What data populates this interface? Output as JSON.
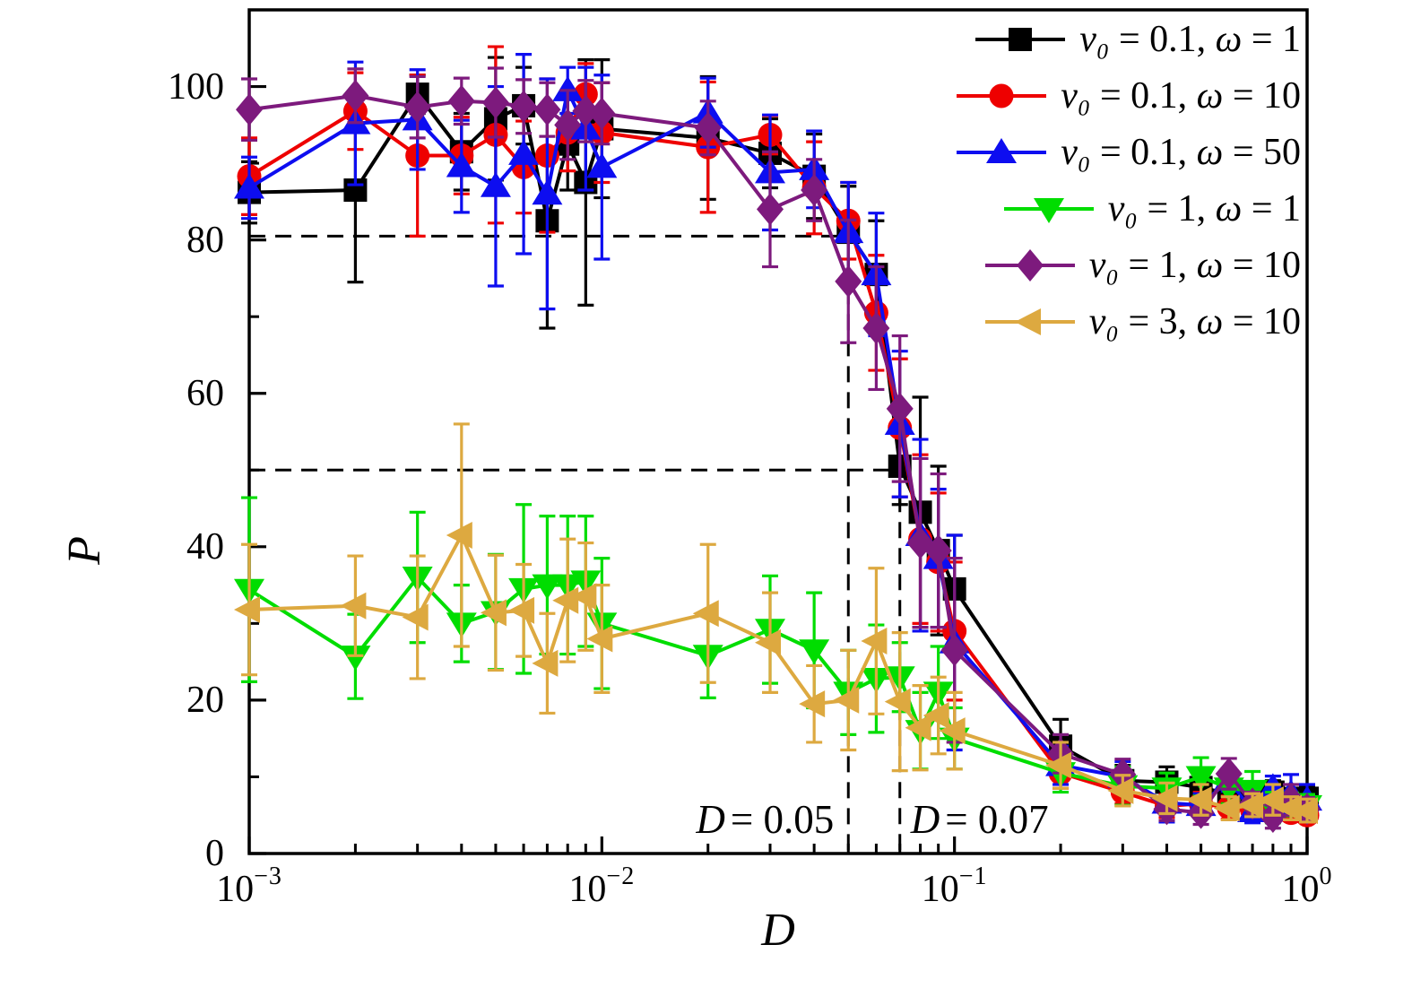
{
  "figure": {
    "background": "#ffffff"
  },
  "chart_data": {
    "type": "line",
    "title": "",
    "xlabel": "D",
    "ylabel": "P",
    "x_scale": "log",
    "xlim": [
      0.001,
      1
    ],
    "ylim": [
      0,
      110
    ],
    "grid": false,
    "legend_position": "top-right-inside",
    "x_tick_labels": [
      {
        "base": "10",
        "exp": "−3",
        "value": 0.001
      },
      {
        "base": "10",
        "exp": "−2",
        "value": 0.01
      },
      {
        "base": "10",
        "exp": "−1",
        "value": 0.1
      },
      {
        "base": "10",
        "exp": "0",
        "value": 1
      }
    ],
    "y_tick_values": [
      0,
      20,
      40,
      60,
      80,
      100
    ],
    "y_minor_ticks": [
      10,
      30,
      50,
      70,
      90
    ],
    "x": [
      0.001,
      0.002,
      0.003,
      0.004,
      0.005,
      0.006,
      0.007,
      0.008,
      0.009,
      0.01,
      0.02,
      0.03,
      0.04,
      0.05,
      0.06,
      0.07,
      0.08,
      0.09,
      0.1,
      0.2,
      0.3,
      0.4,
      0.5,
      0.6,
      0.7,
      0.8,
      0.9,
      1.0
    ],
    "series": [
      {
        "name": "v₀ = 0.1, ω = 1",
        "name_parts": [
          "v₀",
          " = 0.1, ",
          "ω",
          " = 1"
        ],
        "color": "#000000",
        "marker": "square",
        "values": [
          86.2,
          86.5,
          99.0,
          91.5,
          95.8,
          97.5,
          82.5,
          92.5,
          87.5,
          94.5,
          93.3,
          91.3,
          88.3,
          81.0,
          75.5,
          50.5,
          44.5,
          39.5,
          34.5,
          14.0,
          9.5,
          9.3,
          8.6,
          7.8,
          7.8,
          8.0,
          7.0,
          7.2
        ],
        "errors": [
          4,
          12,
          2.5,
          5,
          8,
          5,
          14,
          6,
          16,
          9,
          8,
          4.5,
          5.5,
          6,
          7,
          5,
          15,
          11,
          7,
          3.5,
          2,
          2,
          1.5,
          1.5,
          1.5,
          1.5,
          1.5,
          1.5
        ]
      },
      {
        "name": "v₀ = 0.1, ω = 10",
        "name_parts": [
          "v₀",
          " = 0.1, ",
          "ω",
          " = 10"
        ],
        "color": "#ee0000",
        "marker": "circle",
        "values": [
          88.3,
          96.8,
          91.0,
          91.0,
          93.7,
          89.5,
          91.0,
          94.0,
          99.0,
          94.0,
          92.1,
          93.7,
          86.8,
          82.5,
          70.5,
          55.5,
          41.0,
          38.0,
          29.0,
          10.5,
          8.0,
          6.2,
          6.5,
          6.0,
          5.5,
          6.2,
          5.3,
          5.0
        ],
        "errors": [
          5,
          5,
          10.5,
          5,
          11.5,
          6,
          10,
          5,
          4,
          6.5,
          8.5,
          2.5,
          6,
          5,
          7.5,
          9,
          11,
          9,
          9,
          2,
          1.5,
          1.5,
          1.5,
          1.5,
          1,
          1.5,
          1,
          1
        ]
      },
      {
        "name": "v₀ = 0.1, ω = 50",
        "name_parts": [
          "v₀",
          " = 0.1, ",
          "ω",
          " = 50"
        ],
        "color": "#0d0df0",
        "marker": "triangle-up",
        "values": [
          86.8,
          95.2,
          95.7,
          89.6,
          87.0,
          91.2,
          86.0,
          99.5,
          94.5,
          89.5,
          96.6,
          88.8,
          89.2,
          81.0,
          75.5,
          56.0,
          41.5,
          38.5,
          27.5,
          11.5,
          10.0,
          6.6,
          6.3,
          9.6,
          5.5,
          8.6,
          7.8,
          7.0
        ],
        "errors": [
          4,
          8,
          6.5,
          6,
          13,
          13,
          15,
          3,
          8,
          12,
          4.5,
          7.5,
          5,
          6.5,
          8,
          9.5,
          12.5,
          9,
          14,
          2.5,
          2,
          2.5,
          1.5,
          1.5,
          1.5,
          1.5,
          2.5,
          2
        ]
      },
      {
        "name": "v₀ = 1, ω = 1",
        "name_parts": [
          "v₀",
          " = 1, ",
          "ω",
          " = 1"
        ],
        "color": "#00dd00",
        "marker": "triangle-down",
        "values": [
          34.4,
          25.7,
          36.0,
          30.0,
          31.5,
          34.5,
          35.0,
          35.0,
          35.5,
          30.0,
          25.8,
          29.2,
          26.5,
          21.0,
          22.8,
          23.0,
          16.0,
          21.0,
          15.0,
          10.5,
          8.8,
          8.5,
          10.0,
          8.5,
          8.2,
          6.0,
          6.4,
          6.2
        ],
        "errors": [
          12,
          5.5,
          8.5,
          5,
          7.5,
          11,
          9,
          9,
          8.5,
          8.5,
          5.5,
          7,
          7.5,
          5.5,
          7,
          4.5,
          5,
          6,
          4,
          2.5,
          2.5,
          2,
          2.5,
          2,
          2.5,
          2,
          1.5,
          1.5
        ]
      },
      {
        "name": "v₀ = 1, ω = 10",
        "name_parts": [
          "v₀",
          " = 1, ",
          "ω",
          " = 10"
        ],
        "color": "#7d1a7d",
        "marker": "diamond",
        "values": [
          97.0,
          98.8,
          97.3,
          98.1,
          97.9,
          97.4,
          97.0,
          95.0,
          96.8,
          96.5,
          94.6,
          84.0,
          86.5,
          74.6,
          68.5,
          58.0,
          40.5,
          39.5,
          26.5,
          13.0,
          10.3,
          5.8,
          5.3,
          10.4,
          6.5,
          4.8,
          7.0,
          5.8
        ],
        "errors": [
          4,
          3.5,
          4,
          3,
          4.5,
          3.5,
          3.5,
          4.5,
          4,
          4,
          3.5,
          7.5,
          4,
          8,
          8,
          9.5,
          11,
          10,
          12,
          2.5,
          2,
          1.5,
          1.5,
          2,
          1.5,
          1.5,
          2,
          1.5
        ]
      },
      {
        "name": "v₀ = 3, ω = 10",
        "name_parts": [
          "v₀",
          " = 3, ",
          "ω",
          " = 10"
        ],
        "color": "#dda940",
        "marker": "triangle-left",
        "values": [
          31.8,
          32.3,
          30.8,
          41.5,
          31.4,
          31.7,
          24.8,
          33.0,
          33.5,
          28.0,
          31.3,
          27.5,
          19.5,
          20.0,
          27.7,
          19.8,
          16.4,
          18.0,
          16.0,
          11.5,
          8.2,
          7.2,
          7.0,
          5.9,
          6.3,
          7.0,
          5.9,
          5.6
        ],
        "errors": [
          8.5,
          6.5,
          8,
          14.5,
          7.5,
          6,
          6.5,
          8,
          7,
          7,
          9,
          6.5,
          5,
          6.5,
          9.5,
          9,
          5.5,
          5,
          5,
          3,
          2,
          2,
          2,
          1.5,
          1.5,
          2,
          1.5,
          1.5
        ]
      }
    ],
    "guides": {
      "dashed_h": [
        {
          "p": 80.5,
          "d_start": 0.001,
          "d_end": 0.05
        },
        {
          "p": 50.0,
          "d_start": 0.001,
          "d_end": 0.07
        }
      ],
      "dashed_v": [
        {
          "d": 0.05,
          "p_top": 80.5,
          "p_bottom": 0
        },
        {
          "d": 0.07,
          "p_top": 50.0,
          "p_bottom": 0
        }
      ]
    },
    "annotations": [
      {
        "variable": "D",
        "rest": "= 0.05",
        "d": 0.05,
        "side": "left"
      },
      {
        "variable": "D",
        "rest": "= 0.07",
        "d": 0.07,
        "side": "right"
      }
    ]
  }
}
